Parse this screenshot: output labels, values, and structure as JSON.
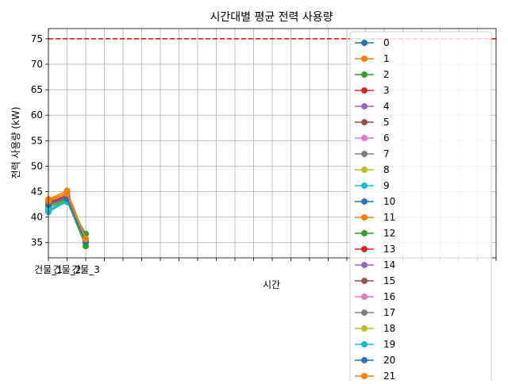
{
  "chart_data": {
    "type": "line",
    "title": "시간대별 평균 전력 사용량",
    "xlabel": "시간",
    "ylabel": "전력 사용량 (kW)",
    "ylim": [
      32,
      77
    ],
    "yticks": [
      35,
      40,
      45,
      50,
      55,
      60,
      65,
      70,
      75
    ],
    "categories": [
      "건물_1",
      "건물_2",
      "건물_3"
    ],
    "x_num_ticks": 24,
    "grid": true,
    "legend_position": "right",
    "threshold": {
      "value": 75,
      "color": "#e00000",
      "style": "dashed"
    },
    "colors": [
      "#1f77b4",
      "#ff7f0e",
      "#2ca02c",
      "#d62728",
      "#9467bd",
      "#8c564b",
      "#e377c2",
      "#7f7f7f",
      "#bcbd22",
      "#17becf"
    ],
    "series": [
      {
        "name": "0",
        "values": [
          41.2,
          43.0,
          35.3
        ]
      },
      {
        "name": "1",
        "values": [
          43.3,
          44.8,
          35.6
        ]
      },
      {
        "name": "2",
        "values": [
          42.4,
          43.3,
          36.7
        ]
      },
      {
        "name": "3",
        "values": [
          42.9,
          44.1,
          35.0
        ]
      },
      {
        "name": "4",
        "values": [
          42.1,
          43.6,
          35.4
        ]
      },
      {
        "name": "5",
        "values": [
          42.7,
          43.9,
          35.2
        ]
      },
      {
        "name": "6",
        "values": [
          42.5,
          43.7,
          35.5
        ]
      },
      {
        "name": "7",
        "values": [
          42.2,
          43.4,
          35.3
        ]
      },
      {
        "name": "8",
        "values": [
          42.6,
          43.8,
          35.6
        ]
      },
      {
        "name": "9",
        "values": [
          41.0,
          43.1,
          35.4
        ]
      },
      {
        "name": "10",
        "values": [
          42.3,
          43.5,
          35.1
        ]
      },
      {
        "name": "11",
        "values": [
          43.5,
          45.2,
          35.8
        ]
      },
      {
        "name": "12",
        "values": [
          42.0,
          43.2,
          34.3
        ]
      },
      {
        "name": "13",
        "values": [
          42.8,
          44.3,
          35.3
        ]
      },
      {
        "name": "14",
        "values": [
          42.4,
          43.6,
          35.4
        ]
      },
      {
        "name": "15",
        "values": [
          42.6,
          43.9,
          35.2
        ]
      },
      {
        "name": "16",
        "values": [
          42.3,
          43.8,
          35.5
        ]
      },
      {
        "name": "17",
        "values": [
          42.5,
          43.7,
          35.3
        ]
      },
      {
        "name": "18",
        "values": [
          42.2,
          43.5,
          35.6
        ]
      },
      {
        "name": "19",
        "values": [
          41.5,
          43.2,
          35.4
        ]
      },
      {
        "name": "20",
        "values": [
          42.4,
          43.6,
          35.2
        ]
      },
      {
        "name": "21",
        "values": [
          43.1,
          44.6,
          35.7
        ]
      }
    ]
  }
}
